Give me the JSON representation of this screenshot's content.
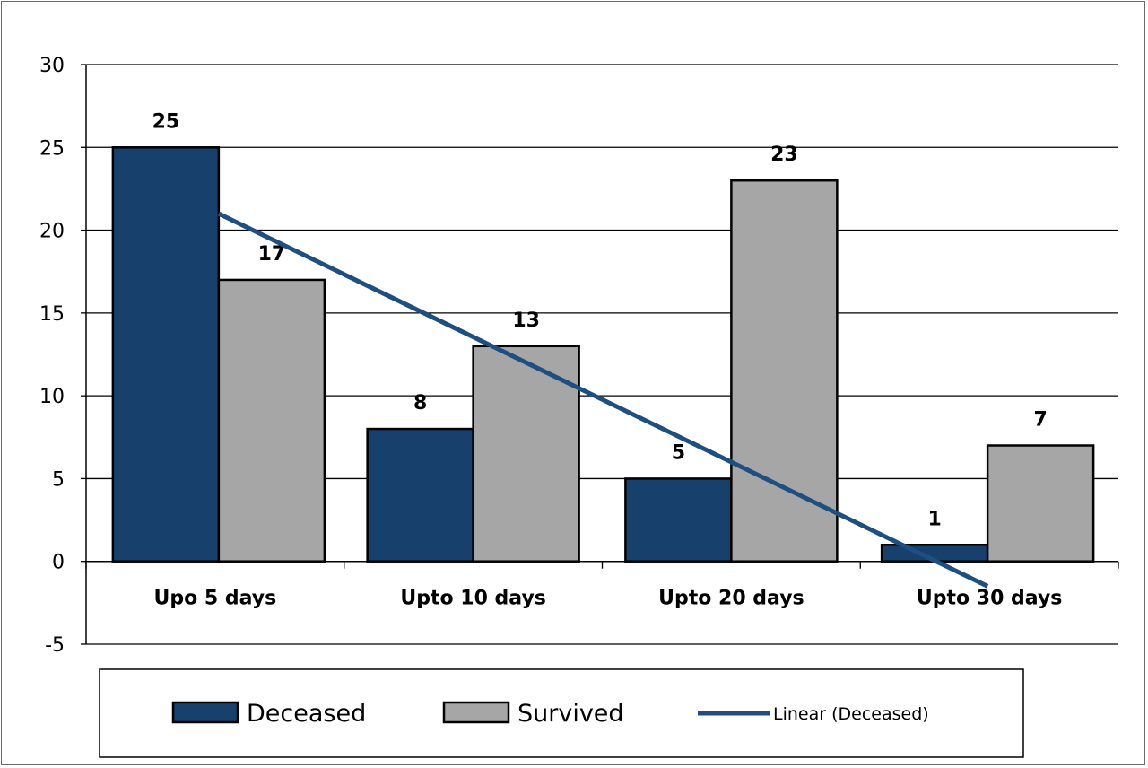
{
  "chart_data": {
    "type": "bar",
    "categories": [
      "Upo 5 days",
      "Upto 10 days",
      "Upto 20 days",
      "Upto 30 days"
    ],
    "series": [
      {
        "name": "Deceased",
        "values": [
          25,
          8,
          5,
          1
        ],
        "color": "#17406d"
      },
      {
        "name": "Survived",
        "values": [
          17,
          13,
          23,
          7
        ],
        "color": "#a6a6a6"
      }
    ],
    "trendline": {
      "name": "Linear (Deceased)",
      "of_series": "Deceased",
      "type": "linear",
      "color": "#1f4e80"
    },
    "title": "",
    "xlabel": "",
    "ylabel": "",
    "ylim": [
      -5,
      30
    ],
    "yticks": [
      -5,
      0,
      5,
      10,
      15,
      20,
      25,
      30
    ],
    "grid": true,
    "legend_position": "bottom"
  }
}
